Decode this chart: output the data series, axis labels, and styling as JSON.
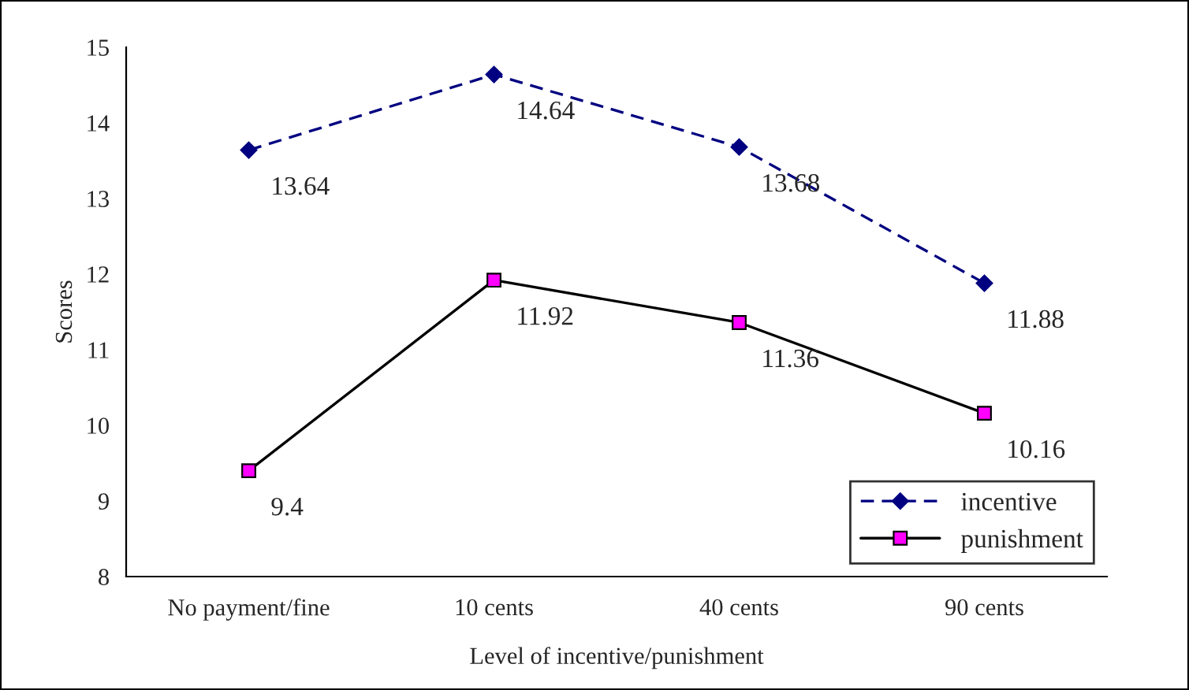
{
  "chart_data": {
    "type": "line",
    "xlabel": "Level of incentive/punishment",
    "ylabel": "Scores",
    "categories": [
      "No payment/fine",
      "10 cents",
      "40 cents",
      "90 cents"
    ],
    "series": [
      {
        "name": "incentive",
        "color": "#000080",
        "values": [
          13.64,
          14.64,
          13.68,
          11.88
        ],
        "marker": "diamond",
        "line_style": "dashed"
      },
      {
        "name": "punishment",
        "color": "#ff00ff",
        "values": [
          9.4,
          11.92,
          11.36,
          10.16
        ],
        "marker": "square",
        "line_style": "solid"
      }
    ],
    "ylim": [
      8,
      15
    ],
    "yticks": [
      8,
      9,
      10,
      11,
      12,
      13,
      14,
      15
    ],
    "grid": false,
    "legend": "bottom right",
    "data_labels": true
  }
}
